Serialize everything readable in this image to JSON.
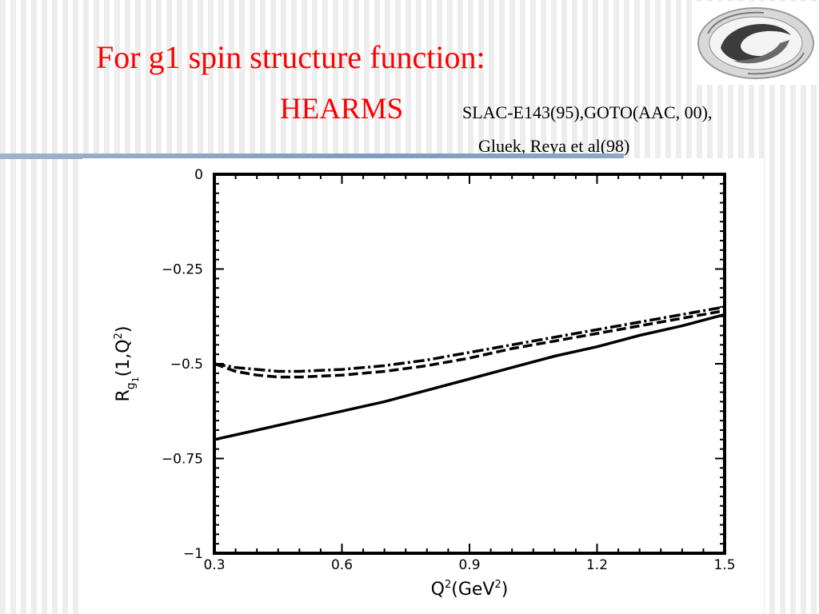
{
  "slide": {
    "title": "For g1 spin structure function:",
    "subtitle": "HEARMS",
    "refs_line1": "SLAC-E143(95),GOTO(AAC, 00),",
    "refs_line2": "Gluek,  Reya et al(98)",
    "title_color": "#ff0000",
    "rule_color": "#7f9bbd"
  },
  "logo": {
    "icon": "institute-logo-icon"
  },
  "chart_data": {
    "type": "line",
    "xlabel": "Q²(GeV²)",
    "ylabel": "R_g1(1,Q²)",
    "xlim": [
      0.3,
      1.5
    ],
    "ylim": [
      -1,
      0
    ],
    "xticks": [
      "0.3",
      "0.6",
      "0.9",
      "1.2",
      "1.5"
    ],
    "yticks": [
      "0",
      "−0.25",
      "−0.5",
      "−0.75",
      "−1"
    ],
    "grid": false,
    "series": [
      {
        "style": "solid",
        "x": [
          0.3,
          0.4,
          0.5,
          0.6,
          0.7,
          0.8,
          0.9,
          1.0,
          1.1,
          1.2,
          1.3,
          1.4,
          1.5
        ],
        "y": [
          -0.7,
          -0.675,
          -0.65,
          -0.625,
          -0.6,
          -0.57,
          -0.54,
          -0.51,
          -0.48,
          -0.455,
          -0.425,
          -0.4,
          -0.37
        ]
      },
      {
        "style": "dashed",
        "x": [
          0.3,
          0.35,
          0.4,
          0.45,
          0.5,
          0.6,
          0.7,
          0.8,
          0.9,
          1.0,
          1.1,
          1.2,
          1.3,
          1.4,
          1.5
        ],
        "y": [
          -0.5,
          -0.52,
          -0.53,
          -0.535,
          -0.535,
          -0.53,
          -0.52,
          -0.505,
          -0.485,
          -0.46,
          -0.44,
          -0.42,
          -0.4,
          -0.38,
          -0.36
        ]
      },
      {
        "style": "dashdot",
        "x": [
          0.3,
          0.35,
          0.4,
          0.45,
          0.5,
          0.6,
          0.7,
          0.8,
          0.9,
          1.0,
          1.1,
          1.2,
          1.3,
          1.4,
          1.5
        ],
        "y": [
          -0.5,
          -0.51,
          -0.515,
          -0.52,
          -0.52,
          -0.515,
          -0.505,
          -0.49,
          -0.47,
          -0.45,
          -0.43,
          -0.41,
          -0.39,
          -0.37,
          -0.35
        ]
      }
    ]
  }
}
